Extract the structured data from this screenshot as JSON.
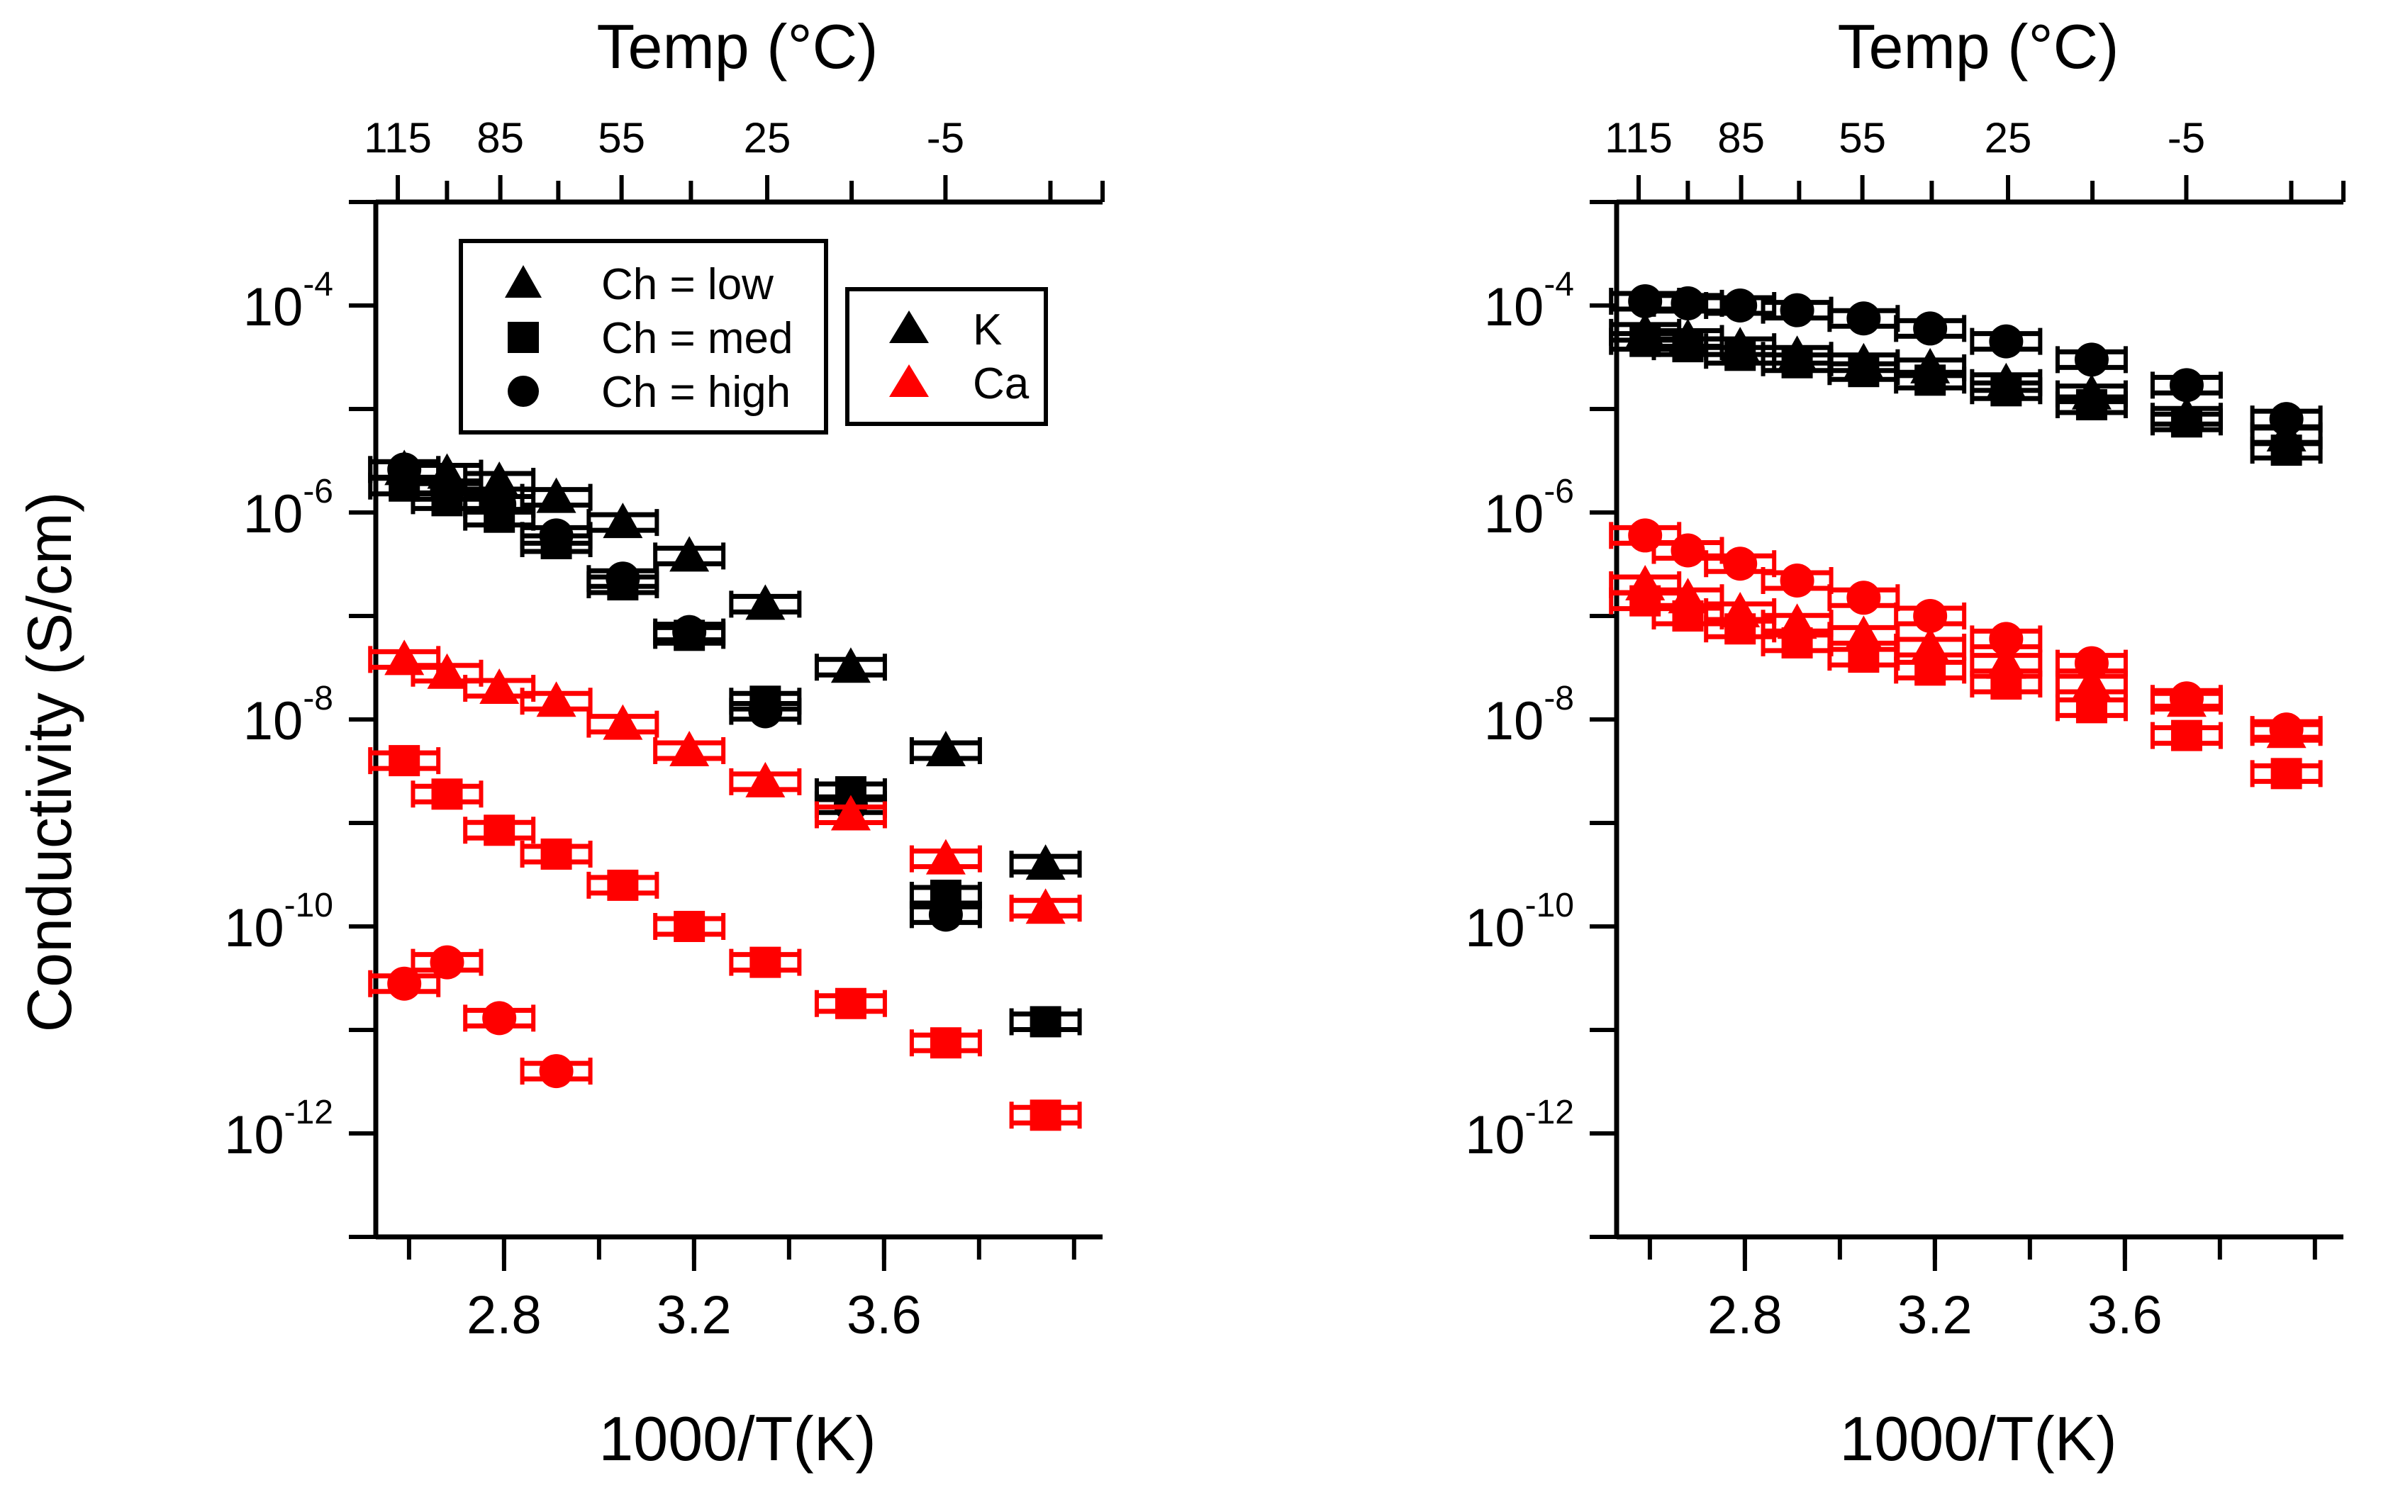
{
  "chart_data": {
    "type": "scatter",
    "y_scale": "log",
    "colors": {
      "K": "#000000",
      "Ca": "#ff0000"
    },
    "legend": {
      "marker_key": [
        {
          "marker": "triangle",
          "label": "Ch = low"
        },
        {
          "marker": "square",
          "label": "Ch = med"
        },
        {
          "marker": "circle",
          "label": "Ch = high"
        }
      ],
      "ion_key": [
        {
          "ion": "K",
          "label": "K"
        },
        {
          "ion": "Ca",
          "label": "Ca"
        }
      ]
    },
    "panels": [
      {
        "name": "left",
        "xlabel": "1000/T(K)",
        "ylabel": "Conductivity (S/cm)",
        "top_axis_title": "Temp (°C)",
        "xlim": [
          2.53,
          4.06
        ],
        "ylim": [
          1e-13,
          0.001
        ],
        "x_ticks": [
          2.8,
          3.2,
          3.6
        ],
        "y_ticks": [
          {
            "base": "10",
            "exp": "-4",
            "value": 0.0001
          },
          {
            "base": "10",
            "exp": "-6",
            "value": 1e-06
          },
          {
            "base": "10",
            "exp": "-8",
            "value": 1e-08
          },
          {
            "base": "10",
            "exp": "-10",
            "value": 1e-10
          },
          {
            "base": "10",
            "exp": "-12",
            "value": 1e-12
          }
        ],
        "top_ticks": [
          {
            "label": "115",
            "celsius": 115
          },
          {
            "label": "85",
            "celsius": 85
          },
          {
            "label": "55",
            "celsius": 55
          },
          {
            "label": "25",
            "celsius": 25
          },
          {
            "label": "-5",
            "celsius": -5
          }
        ],
        "top_minor_celsius": [
          100,
          70,
          40,
          10,
          -20
        ],
        "show_legend": true,
        "series": [
          {
            "name": "K, Ch = low",
            "ion": "K",
            "marker": "triangle",
            "x": [
              2.59,
              2.68,
              2.79,
              2.91,
              3.05,
              3.19,
              3.35,
              3.53,
              3.73,
              3.94
            ],
            "y": [
              2.6e-06,
              2.4e-06,
              2e-06,
              1.4e-06,
              8e-07,
              3.8e-07,
              1.3e-07,
              3.2e-08,
              5e-09,
              4e-10
            ]
          },
          {
            "name": "K, Ch = med",
            "ion": "K",
            "marker": "square",
            "x": [
              2.59,
              2.68,
              2.79,
              2.91,
              3.05,
              3.19,
              3.35,
              3.53,
              3.73,
              3.94
            ],
            "y": [
              1.8e-06,
              1.3e-06,
              9e-07,
              5e-07,
              2e-07,
              6.5e-08,
              1.5e-08,
              2e-09,
              2e-10,
              1.2e-11
            ]
          },
          {
            "name": "K, Ch = high",
            "ion": "K",
            "marker": "circle",
            "x": [
              2.59,
              2.68,
              2.79,
              2.91,
              3.05,
              3.19,
              3.35,
              3.53,
              3.73
            ],
            "y": [
              2.6e-06,
              1.6e-06,
              1.2e-06,
              6e-07,
              2.3e-07,
              7e-08,
              1.2e-08,
              1.5e-09,
              1.3e-10
            ]
          },
          {
            "name": "Ca, Ch = low",
            "ion": "Ca",
            "marker": "triangle",
            "x": [
              2.59,
              2.68,
              2.79,
              2.91,
              3.05,
              3.19,
              3.35,
              3.53,
              3.73,
              3.94
            ],
            "y": [
              3.8e-08,
              2.8e-08,
              2e-08,
              1.5e-08,
              9e-09,
              5e-09,
              2.5e-09,
              1.2e-09,
              4.5e-10,
              1.5e-10
            ]
          },
          {
            "name": "Ca, Ch = med",
            "ion": "Ca",
            "marker": "square",
            "x": [
              2.59,
              2.68,
              2.79,
              2.91,
              3.05,
              3.19,
              3.35,
              3.53,
              3.73,
              3.94
            ],
            "y": [
              4e-09,
              1.9e-09,
              8.5e-10,
              5e-10,
              2.5e-10,
              1e-10,
              4.5e-11,
              1.8e-11,
              7.5e-12,
              1.5e-12
            ]
          },
          {
            "name": "Ca, Ch = high",
            "ion": "Ca",
            "marker": "circle",
            "x": [
              2.59,
              2.68,
              2.79,
              2.91
            ],
            "y": [
              2.8e-11,
              4.5e-11,
              1.3e-11,
              4e-12
            ]
          }
        ]
      },
      {
        "name": "right",
        "xlabel": "1000/T(K)",
        "ylabel": "",
        "top_axis_title": "Temp (°C)",
        "xlim": [
          2.53,
          4.06
        ],
        "ylim": [
          1e-13,
          0.001
        ],
        "x_ticks": [
          2.8,
          3.2,
          3.6
        ],
        "y_ticks": [
          {
            "base": "10",
            "exp": "-4",
            "value": 0.0001
          },
          {
            "base": "10",
            "exp": "-6",
            "value": 1e-06
          },
          {
            "base": "10",
            "exp": "-8",
            "value": 1e-08
          },
          {
            "base": "10",
            "exp": "-10",
            "value": 1e-10
          },
          {
            "base": "10",
            "exp": "-12",
            "value": 1e-12
          }
        ],
        "top_ticks": [
          {
            "label": "115",
            "celsius": 115
          },
          {
            "label": "85",
            "celsius": 85
          },
          {
            "label": "55",
            "celsius": 55
          },
          {
            "label": "25",
            "celsius": 25
          },
          {
            "label": "-5",
            "celsius": -5
          }
        ],
        "top_minor_celsius": [
          100,
          70,
          40,
          10,
          -20
        ],
        "show_legend": false,
        "series": [
          {
            "name": "K, Ch = high",
            "ion": "K",
            "marker": "circle",
            "x": [
              2.59,
              2.68,
              2.79,
              2.91,
              3.05,
              3.19,
              3.35,
              3.53,
              3.73,
              3.94
            ],
            "y": [
              0.00011,
              0.000105,
              0.0001,
              9e-05,
              7.5e-05,
              6e-05,
              4.5e-05,
              3e-05,
              1.7e-05,
              8e-06
            ]
          },
          {
            "name": "K, Ch = low",
            "ion": "K",
            "marker": "triangle",
            "x": [
              2.59,
              2.68,
              2.79,
              2.91,
              3.05,
              3.19,
              3.35,
              3.53,
              3.73,
              3.94
            ],
            "y": [
              5.5e-05,
              4.8e-05,
              4e-05,
              3.3e-05,
              2.8e-05,
              2.5e-05,
              1.8e-05,
              1.4e-05,
              8.5e-06,
              5.5e-06
            ]
          },
          {
            "name": "K, Ch = med",
            "ion": "K",
            "marker": "square",
            "x": [
              2.59,
              2.68,
              2.79,
              2.91,
              3.05,
              3.19,
              3.35,
              3.53,
              3.73,
              3.94
            ],
            "y": [
              4.5e-05,
              4e-05,
              3.3e-05,
              2.8e-05,
              2.3e-05,
              1.9e-05,
              1.5e-05,
              1.1e-05,
              7.5e-06,
              4e-06
            ]
          },
          {
            "name": "Ca, Ch = high",
            "ion": "Ca",
            "marker": "circle",
            "x": [
              2.59,
              2.68,
              2.79,
              2.91,
              3.05,
              3.19,
              3.35,
              3.53,
              3.73,
              3.94
            ],
            "y": [
              6e-07,
              4.3e-07,
              3.2e-07,
              2.2e-07,
              1.5e-07,
              1e-07,
              6e-08,
              3.5e-08,
              1.6e-08,
              8e-09
            ]
          },
          {
            "name": "Ca, Ch = low",
            "ion": "Ca",
            "marker": "triangle",
            "x": [
              2.59,
              2.68,
              2.79,
              2.91,
              3.05,
              3.19,
              3.35,
              3.53,
              3.73,
              3.94
            ],
            "y": [
              2e-07,
              1.5e-07,
              1.1e-07,
              8.5e-08,
              6.5e-08,
              5e-08,
              3.5e-08,
              2.2e-08,
              1.5e-08,
              7.5e-09
            ]
          },
          {
            "name": "Ca, Ch = med",
            "ion": "Ca",
            "marker": "square",
            "x": [
              2.59,
              2.68,
              2.79,
              2.91,
              3.05,
              3.19,
              3.35,
              3.53,
              3.73,
              3.94
            ],
            "y": [
              1.4e-07,
              1e-07,
              7.5e-08,
              5.5e-08,
              4e-08,
              3e-08,
              2.2e-08,
              1.3e-08,
              7e-09,
              3e-09
            ]
          }
        ]
      }
    ]
  }
}
